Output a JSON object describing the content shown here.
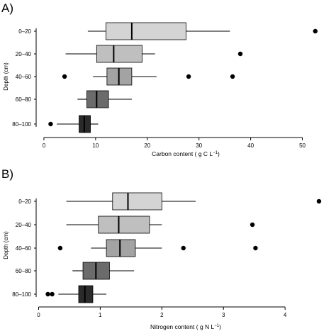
{
  "chart_data": [
    {
      "type": "boxplot",
      "panel_label": "A)",
      "orientation": "horizontal",
      "xlabel": "Carbon content",
      "xlabel_unit": "( g C L",
      "xlabel_sup": "−1",
      "xlabel_close": ")",
      "ylabel": "Depth (cm)",
      "categories": [
        "0–20",
        "20–40",
        "40–60",
        "60–80",
        "80–100"
      ],
      "xlim": [
        -1.5,
        55
      ],
      "xticks": [
        0,
        10,
        20,
        30,
        40,
        50
      ],
      "xtick_labels": [
        "0",
        "10",
        "20",
        "30",
        "40",
        "50"
      ],
      "boxes": [
        {
          "category": "0–20",
          "whislo": 8.5,
          "q1": 12.0,
          "median": 17.0,
          "q3": 27.5,
          "whishi": 36.0,
          "outliers": [
            52.5
          ],
          "color": "#d4d4d4"
        },
        {
          "category": "20–40",
          "whislo": 4.2,
          "q1": 10.2,
          "median": 13.5,
          "q3": 19.0,
          "whishi": 21.5,
          "outliers": [
            38.0
          ],
          "color": "#bfbfbf"
        },
        {
          "category": "40–60",
          "whislo": 9.5,
          "q1": 12.2,
          "median": 14.5,
          "q3": 17.0,
          "whishi": 21.8,
          "outliers": [
            4.0,
            28.0,
            36.5
          ],
          "color": "#a3a3a3"
        },
        {
          "category": "60–80",
          "whislo": 6.5,
          "q1": 8.3,
          "median": 10.2,
          "q3": 12.5,
          "whishi": 17.0,
          "outliers": [],
          "color": "#6b6b6b"
        },
        {
          "category": "80–100",
          "whislo": 2.5,
          "q1": 6.8,
          "median": 7.8,
          "q3": 9.0,
          "whishi": 10.5,
          "outliers": [
            1.3
          ],
          "color": "#2b2b2b"
        }
      ]
    },
    {
      "type": "boxplot",
      "panel_label": "B)",
      "orientation": "horizontal",
      "xlabel": "Nitrogen content",
      "xlabel_unit": "( g N L",
      "xlabel_sup": "−1",
      "xlabel_close": ")",
      "ylabel": "Depth (cm)",
      "categories": [
        "0–20",
        "20–40",
        "40–60",
        "60–80",
        "80–100"
      ],
      "xlim": [
        -0.04,
        4.7
      ],
      "xticks": [
        0,
        1,
        2,
        3,
        4
      ],
      "xtick_labels": [
        "0",
        "1",
        "2",
        "3",
        "4"
      ],
      "boxes": [
        {
          "category": "0–20",
          "whislo": 0.45,
          "q1": 1.2,
          "median": 1.45,
          "q3": 2.0,
          "whishi": 2.55,
          "outliers": [
            4.55
          ],
          "color": "#d4d4d4"
        },
        {
          "category": "20–40",
          "whislo": 0.45,
          "q1": 0.97,
          "median": 1.3,
          "q3": 1.8,
          "whishi": 2.0,
          "outliers": [
            3.47
          ],
          "color": "#bfbfbf"
        },
        {
          "category": "40–60",
          "whislo": 0.85,
          "q1": 1.1,
          "median": 1.32,
          "q3": 1.57,
          "whishi": 2.0,
          "outliers": [
            0.35,
            2.35,
            3.52
          ],
          "color": "#a3a3a3"
        },
        {
          "category": "60–80",
          "whislo": 0.55,
          "q1": 0.72,
          "median": 0.93,
          "q3": 1.15,
          "whishi": 1.55,
          "outliers": [],
          "color": "#6b6b6b"
        },
        {
          "category": "80–100",
          "whislo": 0.32,
          "q1": 0.65,
          "median": 0.75,
          "q3": 0.88,
          "whishi": 1.1,
          "outliers": [
            0.15,
            0.22
          ],
          "color": "#2b2b2b"
        }
      ]
    }
  ]
}
